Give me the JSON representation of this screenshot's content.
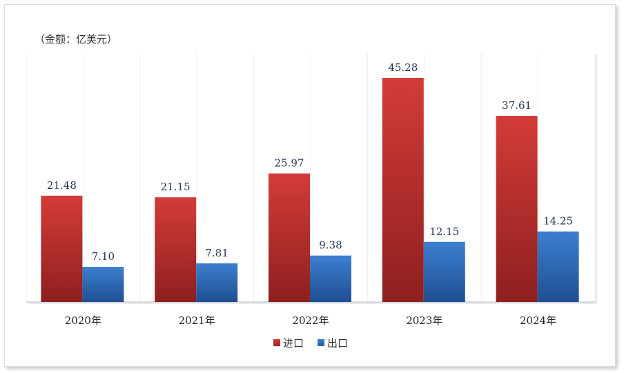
{
  "chart_data": {
    "type": "bar",
    "unit_label": "（金额：亿美元）",
    "categories": [
      "2020年",
      "2021年",
      "2022年",
      "2023年",
      "2024年"
    ],
    "series": [
      {
        "name": "进口",
        "values": [
          21.48,
          21.15,
          25.97,
          45.28,
          37.61
        ],
        "color": "#c8302f"
      },
      {
        "name": "出口",
        "values": [
          7.1,
          7.81,
          9.38,
          12.15,
          14.25
        ],
        "color": "#2f6fc0"
      }
    ],
    "value_labels": [
      [
        "21.48",
        "21.15",
        "25.97",
        "45.28",
        "37.61"
      ],
      [
        "7.10",
        "7.81",
        "9.38",
        "12.15",
        "14.25"
      ]
    ],
    "ylim": [
      0,
      50
    ],
    "grid": false,
    "legend": "bottom-center"
  }
}
